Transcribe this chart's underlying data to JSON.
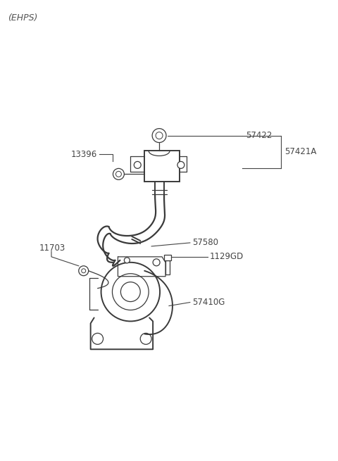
{
  "bg_color": "#ffffff",
  "line_color": "#3a3a3a",
  "text_color": "#444444",
  "lw_main": 1.4,
  "lw_thin": 0.9,
  "lw_label": 0.8,
  "label_fontsize": 8.5,
  "ehps_label": "(EHPS)",
  "parts": {
    "57422": "57422",
    "57421A": "57421A",
    "13396": "13396",
    "57580": "57580",
    "11703": "11703",
    "1129GD": "1129GD",
    "57410G": "57410G"
  },
  "figsize": [
    4.8,
    6.55
  ],
  "dpi": 100
}
